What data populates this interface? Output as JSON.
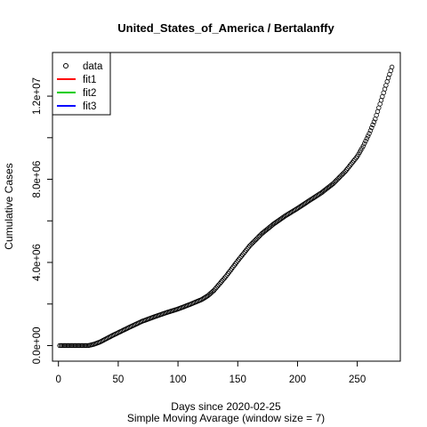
{
  "chart_data": {
    "type": "scatter",
    "title": "United_States_of_America / Bertalanffy",
    "xlabel": "Days since 2020-02-25",
    "sublabel": "Simple Moving Avarage (window size = 7)",
    "ylabel": "Cumulative Cases",
    "xlim": [
      -5,
      286
    ],
    "ylim": [
      -750000,
      14100000
    ],
    "x_ticks": [
      0,
      50,
      100,
      150,
      200,
      250
    ],
    "x_tick_labels": [
      "0",
      "50",
      "100",
      "150",
      "200",
      "250"
    ],
    "y_ticks": [
      0,
      4000000,
      8000000,
      12000000
    ],
    "y_tick_labels": [
      "0.0e+00",
      "4.0e+06",
      "8.0e+06",
      "1.2e+07"
    ],
    "y_minor_ticks": [
      2000000,
      6000000,
      10000000
    ],
    "grid": false,
    "legend_position": "top-left",
    "legend": [
      {
        "label": "data",
        "kind": "point",
        "color": "#000000"
      },
      {
        "label": "fit1",
        "kind": "line",
        "color": "#ff0000"
      },
      {
        "label": "fit2",
        "kind": "line",
        "color": "#00cd00"
      },
      {
        "label": "fit3",
        "kind": "line",
        "color": "#0000ff"
      }
    ],
    "series": [
      {
        "name": "data",
        "x_range": [
          1,
          279
        ],
        "knots_x": [
          1,
          25,
          30,
          35,
          40,
          45,
          50,
          60,
          70,
          80,
          90,
          100,
          110,
          120,
          125,
          130,
          140,
          150,
          160,
          170,
          180,
          190,
          200,
          210,
          220,
          230,
          240,
          250,
          255,
          260,
          265,
          270,
          275,
          279
        ],
        "knots_y": [
          0,
          0,
          70000,
          180000,
          330000,
          480000,
          620000,
          900000,
          1170000,
          1380000,
          1580000,
          1760000,
          1980000,
          2220000,
          2400000,
          2650000,
          3320000,
          4080000,
          4800000,
          5380000,
          5850000,
          6250000,
          6600000,
          6980000,
          7350000,
          7800000,
          8380000,
          9100000,
          9600000,
          10200000,
          10900000,
          11800000,
          12700000,
          13400000
        ]
      }
    ]
  }
}
